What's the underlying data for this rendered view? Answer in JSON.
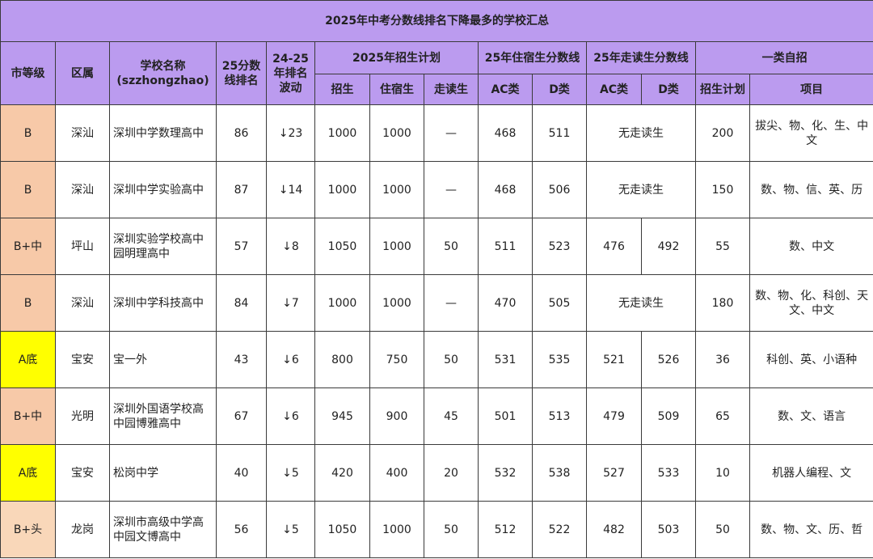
{
  "title": "2025年中考分数线排名下降最多的学校汇总",
  "headers": {
    "level": "市等级",
    "district": "区属",
    "school_line1": "学校名称",
    "school_line2": "(szzhongzhao)",
    "rank25_line1": "25分数",
    "rank25_line2": "线排名",
    "change_line1": "24-25",
    "change_line2": "年排名",
    "change_line3": "波动",
    "plan_group": "2025年招生计划",
    "plan_total": "招生",
    "plan_board": "住宿生",
    "plan_walk": "走读生",
    "board_group": "25年住宿生分数线",
    "board_ac": "AC类",
    "board_d": "D类",
    "walk_group": "25年走读生分数线",
    "walk_ac": "AC类",
    "walk_d": "D类",
    "self_group": "一类自招",
    "self_plan": "招生计划",
    "self_items": "项目"
  },
  "rows": [
    {
      "level": "B",
      "level_color": "#f7c9a8",
      "district": "深汕",
      "school": "深圳中学数理高中",
      "rank": "86",
      "change": "↓23",
      "total": "1000",
      "board": "1000",
      "walk": "—",
      "bac": "468",
      "bd": "511",
      "no_walk": "无走读生",
      "self_plan": "200",
      "items": "拔尖、物、化、生、中文"
    },
    {
      "level": "B",
      "level_color": "#f7c9a8",
      "district": "深汕",
      "school": "深圳中学实验高中",
      "rank": "87",
      "change": "↓14",
      "total": "1000",
      "board": "1000",
      "walk": "—",
      "bac": "468",
      "bd": "506",
      "no_walk": "无走读生",
      "self_plan": "150",
      "items": "数、物、信、英、历"
    },
    {
      "level": "B+中",
      "level_color": "#f7c9a8",
      "district": "坪山",
      "school": "深圳实验学校高中园明理高中",
      "rank": "57",
      "change": "↓8",
      "total": "1050",
      "board": "1000",
      "walk": "50",
      "bac": "511",
      "bd": "523",
      "wac": "476",
      "wd": "492",
      "self_plan": "55",
      "items": "数、中文"
    },
    {
      "level": "B",
      "level_color": "#f7c9a8",
      "district": "深汕",
      "school": "深圳中学科技高中",
      "rank": "84",
      "change": "↓7",
      "total": "1000",
      "board": "1000",
      "walk": "—",
      "bac": "470",
      "bd": "505",
      "no_walk": "无走读生",
      "self_plan": "180",
      "items": "数、物、化、科创、天文、中文"
    },
    {
      "level": "A底",
      "level_color": "#ffff00",
      "district": "宝安",
      "school": "宝一外",
      "rank": "43",
      "change": "↓6",
      "total": "800",
      "board": "750",
      "walk": "50",
      "bac": "531",
      "bd": "535",
      "wac": "521",
      "wd": "526",
      "self_plan": "36",
      "items": "科创、英、小语种"
    },
    {
      "level": "B+中",
      "level_color": "#f7c9a8",
      "district": "光明",
      "school": "深圳外国语学校高中园博雅高中",
      "rank": "67",
      "change": "↓6",
      "total": "945",
      "board": "900",
      "walk": "45",
      "bac": "501",
      "bd": "513",
      "wac": "479",
      "wd": "509",
      "self_plan": "65",
      "items": "数、文、语言"
    },
    {
      "level": "A底",
      "level_color": "#ffff00",
      "district": "宝安",
      "school": "松岗中学",
      "rank": "40",
      "change": "↓5",
      "total": "420",
      "board": "400",
      "walk": "20",
      "bac": "532",
      "bd": "538",
      "wac": "527",
      "wd": "533",
      "self_plan": "10",
      "items": "机器人编程、文"
    },
    {
      "level": "B+头",
      "level_color": "#f9d7b9",
      "district": "龙岗",
      "school": "深圳市高级中学高中园文博高中",
      "rank": "56",
      "change": "↓5",
      "total": "1050",
      "board": "1000",
      "walk": "50",
      "bac": "512",
      "bd": "522",
      "wac": "482",
      "wd": "503",
      "self_plan": "50",
      "items": "数、物、文、历、哲"
    }
  ]
}
